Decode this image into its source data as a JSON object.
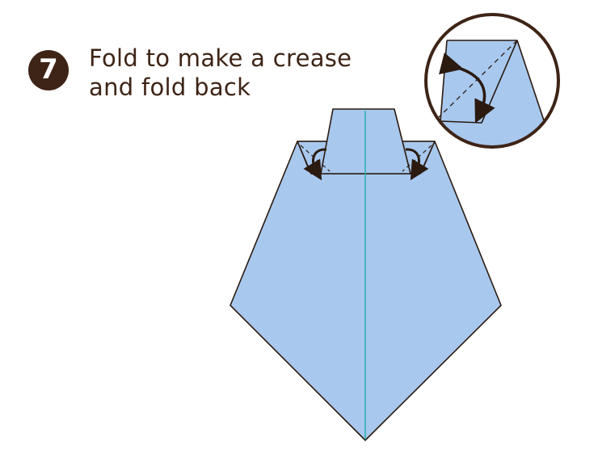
{
  "step": {
    "number": "7",
    "line1": "Fold to make a crease",
    "line2": "and fold back"
  },
  "colors": {
    "paper": "#a8c8ee",
    "outline": "#2a1a10",
    "centerline": "#2ab0b0",
    "badge": "#3e2416",
    "text": "#3e2416"
  },
  "icons": {
    "badge": "step-number-circle",
    "detail": "magnified-detail-circle",
    "arrows": "fold-arrow-icon"
  }
}
